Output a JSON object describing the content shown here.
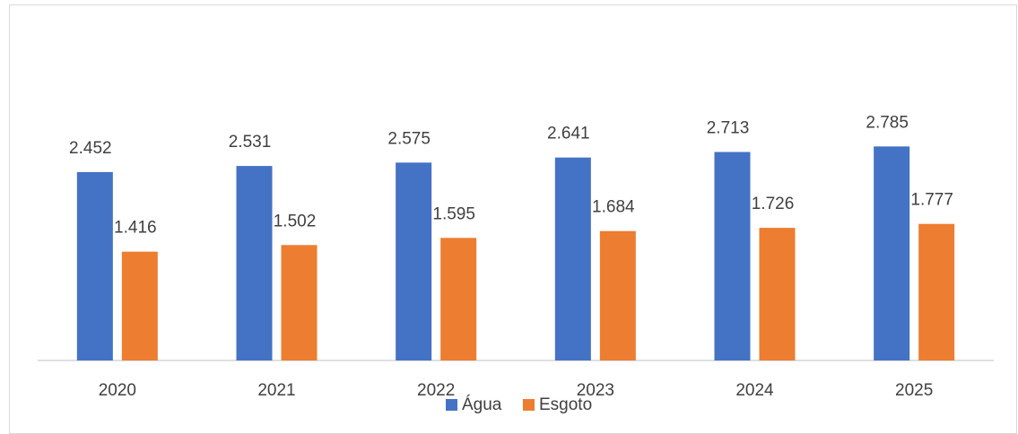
{
  "chart_data": {
    "type": "bar",
    "categories": [
      "2020",
      "2021",
      "2022",
      "2023",
      "2024",
      "2025"
    ],
    "series": [
      {
        "name": "Água",
        "color": "#4472c4",
        "values": [
          2.452,
          2.531,
          2.575,
          2.641,
          2.713,
          2.785
        ]
      },
      {
        "name": "Esgoto",
        "color": "#ed7d31",
        "values": [
          1.416,
          1.502,
          1.595,
          1.684,
          1.726,
          1.777
        ]
      }
    ]
  }
}
